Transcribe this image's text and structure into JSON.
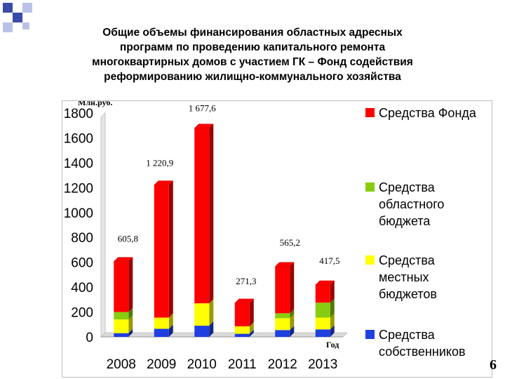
{
  "slide": {
    "title_lines": [
      "Общие объемы финансирования областных адресных",
      "программ по проведению капитального ремонта",
      "многоквартирных домов  с участием ГК – Фонд содействия",
      "реформированию жилищно-коммунального хозяйства"
    ],
    "page_number": "6"
  },
  "chart_data": {
    "type": "bar",
    "stacked": true,
    "ylabel": "Млн.руб.",
    "xlabel": "Год",
    "categories": [
      "2008",
      "2009",
      "2010",
      "2011",
      "2012",
      "2013"
    ],
    "y_ticks": [
      "0",
      "200",
      "400",
      "600",
      "800",
      "1000",
      "1200",
      "1400",
      "1600",
      "1800"
    ],
    "ylim": [
      0,
      1800
    ],
    "totals": [
      605.8,
      1220.9,
      1677.6,
      271.3,
      565.2,
      417.5
    ],
    "total_labels": [
      "605,8",
      "1 220,9",
      "1 677,6",
      "271,3",
      "565,2",
      "417,5"
    ],
    "series": [
      {
        "name": "Средства собственников",
        "color": "#1f3fe0",
        "values": [
          30,
          65,
          90,
          25,
          55,
          60
        ]
      },
      {
        "name": "Средства местных бюджетов",
        "color": "#ffff00",
        "values": [
          110,
          90,
          180,
          60,
          95,
          95
        ]
      },
      {
        "name": "Средства областного бюджета",
        "color": "#88cc11",
        "values": [
          60,
          0,
          0,
          0,
          40,
          120
        ]
      },
      {
        "name": "Средства Фонда",
        "color": "#ff0000",
        "values": [
          405.8,
          1065.9,
          1407.6,
          186.3,
          375.2,
          142.5
        ]
      }
    ],
    "legend_order": [
      "Средства Фонда",
      "Средства областного бюджета",
      "Средства местных бюджетов",
      "Средства собственников"
    ],
    "legend_lines": {
      "Средства Фонда": [
        "Средства Фонда"
      ],
      "Средства областного бюджета": [
        "Средства",
        "областного",
        "бюджета"
      ],
      "Средства местных бюджетов": [
        "Средства",
        "местных",
        "бюджетов"
      ],
      "Средства собственников": [
        "Средства",
        "собственников"
      ]
    },
    "legend_position": "right",
    "grid": false
  }
}
